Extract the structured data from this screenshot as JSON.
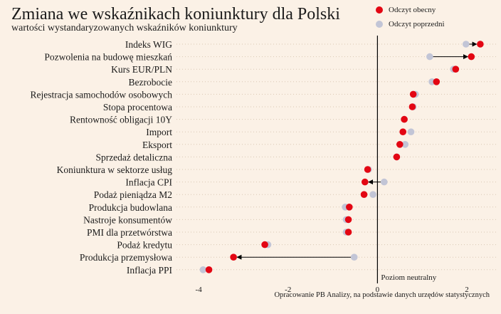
{
  "chart_data": {
    "type": "dot",
    "title": "Zmiana we wskaźnikach koniunktury dla Polski",
    "subtitle": "wartości wystandaryzowanych wskaźników koniunktury",
    "legend": {
      "placement": "top-right",
      "items": [
        {
          "name": "Odczyt obecny",
          "color": "#e30613"
        },
        {
          "name": "Odczyt poprzedni",
          "color": "#c2c5d6"
        }
      ]
    },
    "xlim": [
      -4.4,
      2.7
    ],
    "xticks": [
      -4,
      -2,
      0,
      2
    ],
    "xtick_labels": [
      "-4",
      "-2",
      "0",
      "2"
    ],
    "reference_line": {
      "x": 0,
      "label": "Poziom neutralny"
    },
    "grid": {
      "horizontal_dotted": true
    },
    "source": "Opracowanie PB Analizy, na podstawie danych urzędów statystycznych",
    "categories": [
      "Indeks WIG",
      "Pozwolenia na budowę mieszkań",
      "Kurs EUR/PLN",
      "Bezrobocie",
      "Rejestracja samochodów osobowych",
      "Stopa procentowa",
      "Rentowność obligacji 10Y",
      "Import",
      "Eksport",
      "Sprzedaż detaliczna",
      "Koniunktura w sektorze usług",
      "Inflacja CPI",
      "Podaż pieniądza M2",
      "Produkcja budowlana",
      "Nastroje konsumentów",
      "PMI dla przetwórstwa",
      "Podaż kredytu",
      "Produkcja przemysłowa",
      "Inflacja PPI"
    ],
    "series": [
      {
        "name": "Odczyt obecny",
        "values": [
          2.3,
          2.1,
          1.75,
          1.32,
          0.8,
          0.78,
          0.6,
          0.57,
          0.5,
          0.43,
          -0.22,
          -0.28,
          -0.3,
          -0.63,
          -0.65,
          -0.65,
          -2.52,
          -3.22,
          -3.77
        ]
      },
      {
        "name": "Odczyt poprzedni",
        "values": [
          1.98,
          1.17,
          1.7,
          1.22,
          0.85,
          0.8,
          0.6,
          0.75,
          0.62,
          0.43,
          -0.2,
          0.15,
          -0.1,
          -0.72,
          -0.7,
          -0.7,
          -2.45,
          -0.52,
          -3.9
        ]
      }
    ],
    "arrows": [
      "Indeks WIG",
      "Pozwolenia na budowę mieszkań",
      "Inflacja CPI",
      "Produkcja przemysłowa"
    ]
  }
}
